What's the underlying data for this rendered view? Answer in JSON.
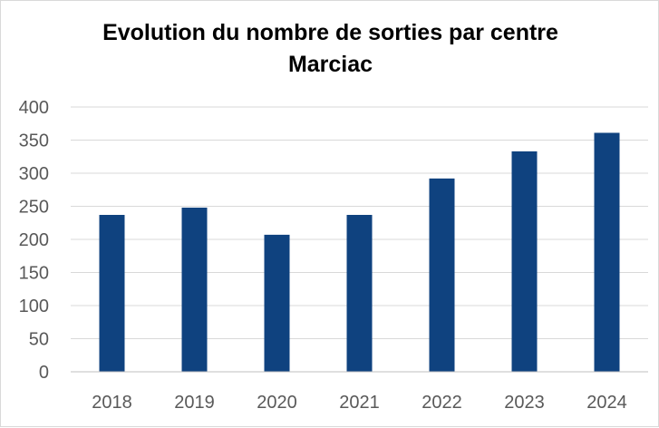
{
  "chart_data": {
    "type": "bar",
    "title": "Evolution du nombre de sorties par centre",
    "subtitle": "Marciac",
    "xlabel": "",
    "ylabel": "",
    "categories": [
      "2018",
      "2019",
      "2020",
      "2021",
      "2022",
      "2023",
      "2024"
    ],
    "values": [
      237,
      248,
      207,
      237,
      292,
      333,
      361
    ],
    "ylim": [
      0,
      400
    ],
    "yticks": [
      "0",
      "50",
      "100",
      "150",
      "200",
      "250",
      "300",
      "350",
      "400"
    ],
    "grid": true,
    "legend": "none",
    "bar_color": "#0f427f",
    "grid_color": "#d9d9d9",
    "axis_color": "#bfbfbf"
  }
}
